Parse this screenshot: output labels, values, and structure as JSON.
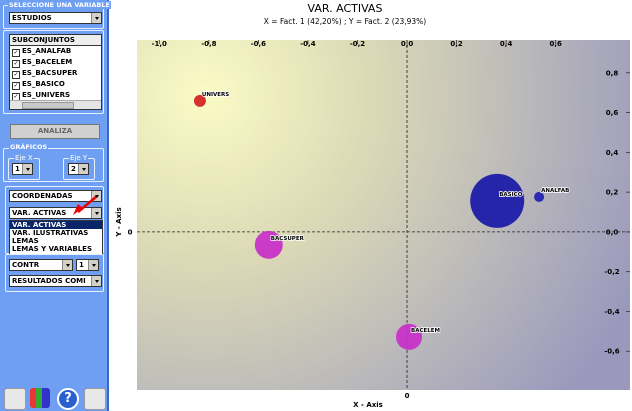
{
  "panel": {
    "variable_group": "SELECCIONE UNA VARIABLE",
    "variable": "ESTUDIOS",
    "subsets_header": "SUBCONJUNTOS",
    "subsets": [
      "ES_ANALFAB",
      "ES_BACELEM",
      "ES_BACSUPER",
      "ES_BASICO",
      "ES_UNIVERS"
    ],
    "analyze_button": "ANALIZA",
    "graphs_group": "GRÁFICOS",
    "axis_x_label": "Eje X",
    "axis_x_value": "1",
    "axis_y_label": "Eje Y",
    "axis_y_value": "2",
    "coordinates": "COORDENADAS",
    "view_select": "VAR. ACTIVAS",
    "view_options": [
      "VAR. ACTIVAS",
      "VAR. ILUSTRATIVAS",
      "LEMAS",
      "LEMAS Y VARIABLES"
    ],
    "contr_select": "CONTR",
    "contr_value": "1",
    "results_select": "RESULTADOS COMI"
  },
  "chart_data": {
    "type": "bubble",
    "title": "VAR. ACTIVAS",
    "subtitle": "X = Fact. 1 (42,20%) ; Y = Fact. 2 (23,93%)",
    "x_label": "X - Axis",
    "y_label": "Y - Axis",
    "origin_label": "0",
    "labels": [
      "UNIVERS",
      "BACSUPER",
      "BASICO",
      "ANALFAB",
      "BACELEM"
    ],
    "x": [
      -0.836,
      -0.558,
      0.364,
      0.533,
      0.008
    ],
    "y": [
      0.659,
      -0.065,
      0.156,
      0.176,
      -0.528
    ],
    "sizes": [
      6,
      14,
      27,
      5,
      13
    ],
    "colors": [
      "#d42020",
      "#c82ec8",
      "#1818a8",
      "#2020b0",
      "#c82ec8"
    ],
    "xlim": [
      -1.09,
      0.9
    ],
    "ylim": [
      -0.795,
      0.965
    ],
    "xticks": [
      {
        "value": -1.0,
        "label": "-1,0"
      },
      {
        "value": -0.8,
        "label": "-0,8"
      },
      {
        "value": -0.6,
        "label": "-0,6"
      },
      {
        "value": -0.4,
        "label": "-0,4"
      },
      {
        "value": -0.2,
        "label": "-0,2"
      },
      {
        "value": 0,
        "label": "0,0"
      },
      {
        "value": 0.2,
        "label": "0,2"
      },
      {
        "value": 0.4,
        "label": "0,4"
      },
      {
        "value": 0.6,
        "label": "0,6"
      }
    ],
    "yticks": [
      {
        "value": 0.8,
        "label": "0,8"
      },
      {
        "value": 0.6,
        "label": "0,6"
      },
      {
        "value": 0.4,
        "label": "0,4"
      },
      {
        "value": 0.2,
        "label": "0,2"
      },
      {
        "value": 0,
        "label": "0,0"
      },
      {
        "value": -0.2,
        "label": "-0,2"
      },
      {
        "value": -0.4,
        "label": "-0,4"
      },
      {
        "value": -0.6,
        "label": "-0,6"
      }
    ]
  }
}
